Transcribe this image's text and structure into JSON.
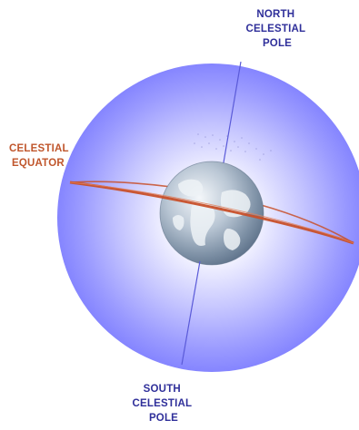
{
  "labels": {
    "north_pole": [
      "NORTH",
      "CELESTIAL",
      "POLE"
    ],
    "south_pole": [
      "SOUTH",
      "CELESTIAL",
      "POLE"
    ],
    "equator": [
      "CELESTIAL",
      "EQUATOR"
    ]
  },
  "colors": {
    "pole_label": "#2f2f9a",
    "equator_label": "#c0562c",
    "equator_ring": "#c8502a",
    "axis": "#5a5ad8",
    "sphere_center": "#ffffff",
    "sphere_edge": "#7a7aff",
    "earth_light": "#e8edf2",
    "earth_dark": "#6a7f95"
  },
  "icons": {
    "earth": "earth-globe-icon"
  }
}
